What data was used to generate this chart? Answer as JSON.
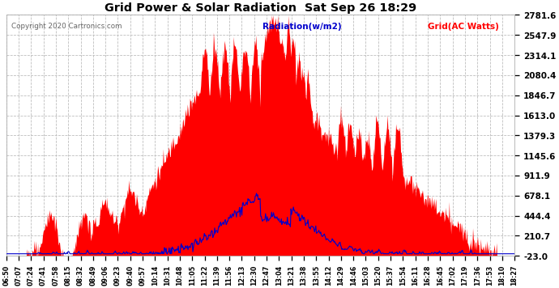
{
  "title": "Grid Power & Solar Radiation  Sat Sep 26 18:29",
  "copyright": "Copyright 2020 Cartronics.com",
  "legend_radiation": "Radiation(w/m2)",
  "legend_grid": "Grid(AC Watts)",
  "yticks": [
    -23.0,
    210.7,
    444.4,
    678.1,
    911.9,
    1145.6,
    1379.3,
    1613.0,
    1846.7,
    2080.4,
    2314.1,
    2547.9,
    2781.6
  ],
  "ymin": -23.0,
  "ymax": 2781.6,
  "xtick_labels": [
    "06:50",
    "07:07",
    "07:24",
    "07:41",
    "07:58",
    "08:15",
    "08:32",
    "08:49",
    "09:06",
    "09:23",
    "09:40",
    "09:57",
    "10:14",
    "10:31",
    "10:48",
    "11:05",
    "11:22",
    "11:39",
    "11:56",
    "12:13",
    "12:30",
    "12:47",
    "13:04",
    "13:21",
    "13:38",
    "13:55",
    "14:12",
    "14:29",
    "14:46",
    "15:03",
    "15:20",
    "15:37",
    "15:54",
    "16:11",
    "16:28",
    "16:45",
    "17:02",
    "17:19",
    "17:36",
    "17:53",
    "18:10",
    "18:27"
  ],
  "background_color": "#ffffff",
  "grid_color": "#bbbbbb",
  "red_fill_color": "#ff0000",
  "blue_line_color": "#0000cc",
  "title_color": "#000000",
  "copyright_color": "#666666"
}
